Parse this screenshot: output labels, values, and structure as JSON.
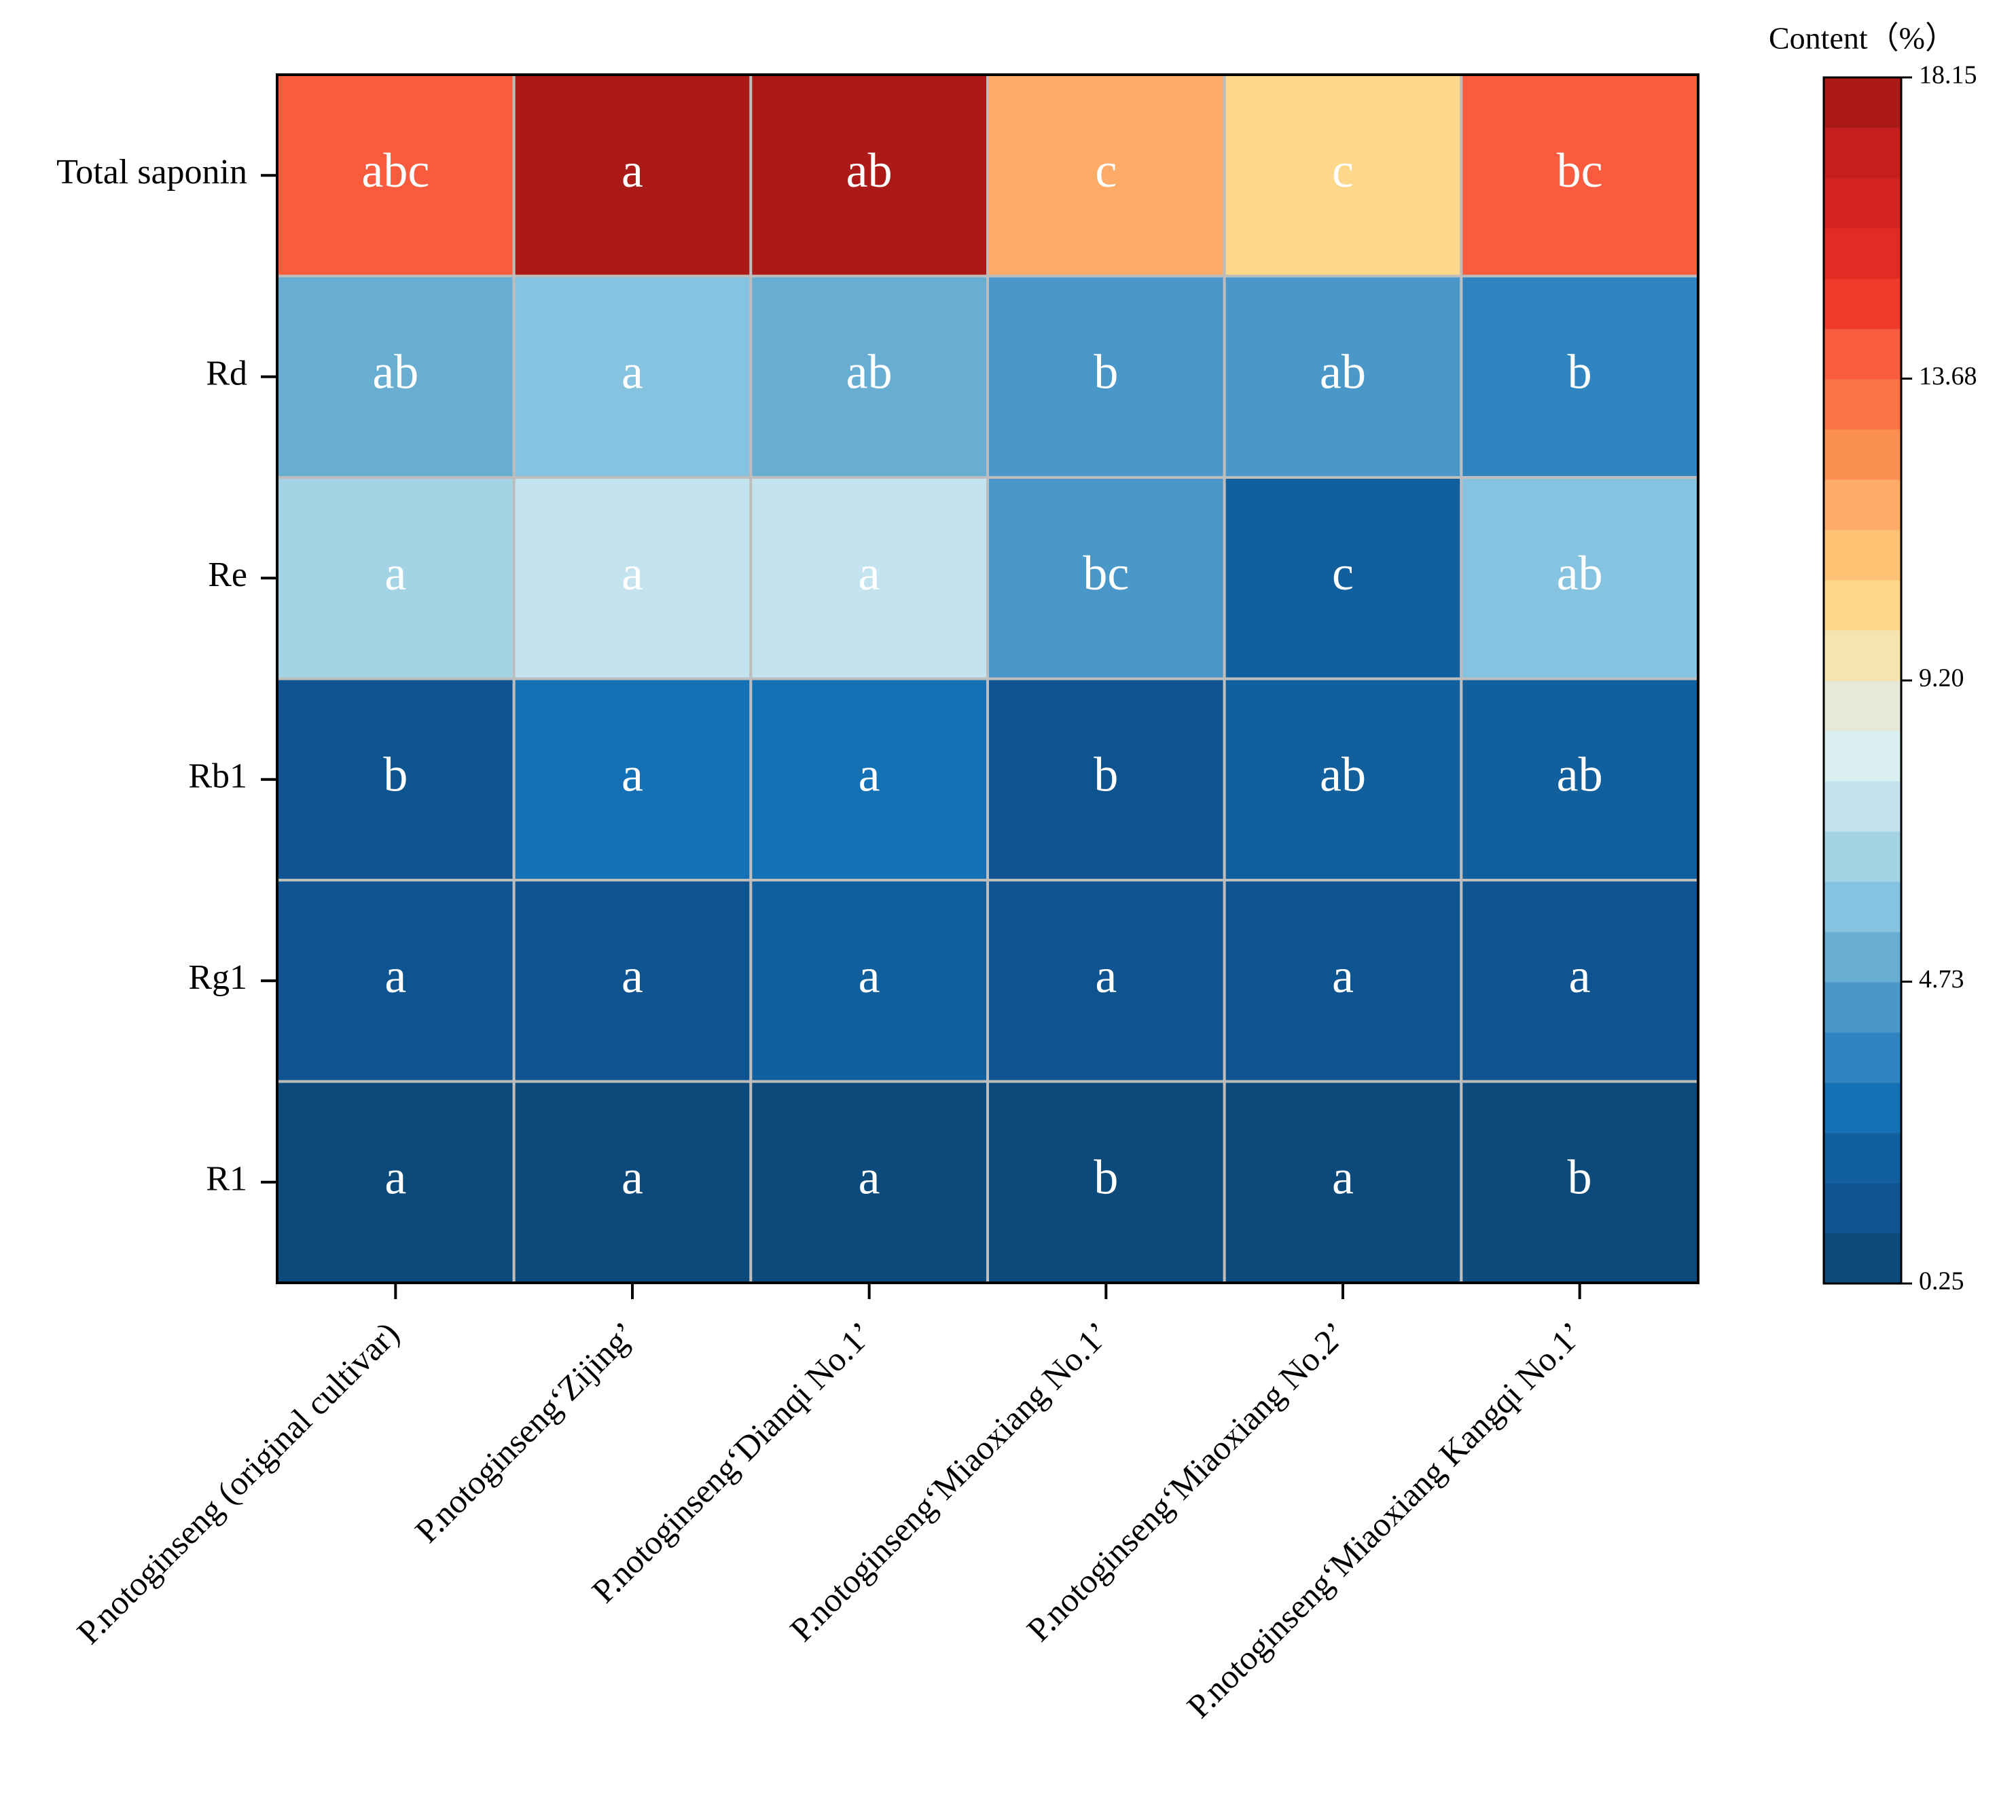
{
  "chart_data": {
    "type": "heatmap",
    "rows": [
      "Total saponin",
      "Rd",
      "Re",
      "Rb1",
      "Rg1",
      "R1"
    ],
    "columns": [
      "P.notoginseng (original cultivar)",
      "P.notoginseng‘Zijing’",
      "P.notoginseng‘Dianqi No.1’",
      "P.notoginseng‘Miaoxiang No.1’",
      "P.notoginseng‘Miaoxiang No.2’",
      "P.notoginseng‘Miaoxiang Kangqi No.1’"
    ],
    "values": [
      [
        13.9,
        17.8,
        17.6,
        11.6,
        10.2,
        13.9
      ],
      [
        5.0,
        5.8,
        5.0,
        4.3,
        4.3,
        3.5
      ],
      [
        6.5,
        7.3,
        7.3,
        4.3,
        1.9,
        5.8
      ],
      [
        1.0,
        2.6,
        2.6,
        1.0,
        1.9,
        1.8
      ],
      [
        1.0,
        1.0,
        1.8,
        1.0,
        1.0,
        1.0
      ],
      [
        0.6,
        0.6,
        0.6,
        0.6,
        0.6,
        0.6
      ]
    ],
    "labels": [
      [
        "abc",
        "a",
        "ab",
        "c",
        "c",
        "bc"
      ],
      [
        "ab",
        "a",
        "ab",
        "b",
        "ab",
        "b"
      ],
      [
        "a",
        "a",
        "a",
        "bc",
        "c",
        "ab"
      ],
      [
        "b",
        "a",
        "a",
        "b",
        "ab",
        "ab"
      ],
      [
        "a",
        "a",
        "a",
        "a",
        "a",
        "a"
      ],
      [
        "a",
        "a",
        "a",
        "b",
        "a",
        "b"
      ]
    ],
    "colorbar_title": "Content（%）",
    "clim": [
      0.25,
      18.15
    ],
    "cticks": [
      0.25,
      4.73,
      {
        "value": 9.2,
        "label": "9.20"
      },
      13.68,
      18.15
    ],
    "colormap": [
      "#0b4a7a",
      "#0e5490",
      "#115f9c",
      "#1471b5",
      "#2f85c0",
      "#4a97c9",
      "#68aed3",
      "#86c3e0",
      "#a5d3e6",
      "#c3e3ee",
      "#daf0f0",
      "#e8e8d8",
      "#f6e4b0",
      "#fdd88a",
      "#fdc274",
      "#fdab66",
      "#fc8f52",
      "#fb7448",
      "#f85b3e",
      "#ef3c2a",
      "#e32b23",
      "#d3241f",
      "#c41f1c",
      "#ab1a17"
    ]
  }
}
